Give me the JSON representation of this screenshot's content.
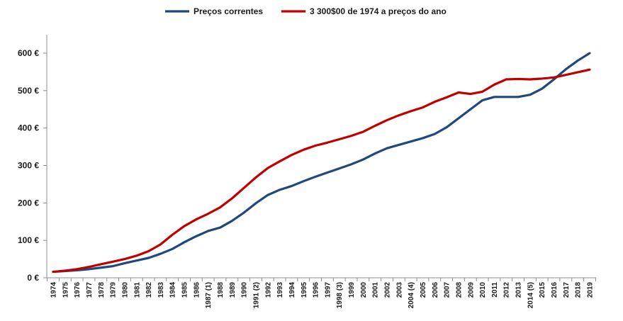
{
  "chart_data": {
    "type": "line",
    "title": "",
    "xlabel": "",
    "ylabel": "",
    "ylim": [
      0,
      600
    ],
    "y_ticks": [
      0,
      100,
      200,
      300,
      400,
      500,
      600
    ],
    "y_tick_labels": [
      "0 €",
      "100 €",
      "200 €",
      "300 €",
      "400 €",
      "500 €",
      "600 €"
    ],
    "grid": false,
    "legend_position": "top-center",
    "categories": [
      "1974",
      "1975",
      "1976",
      "1977",
      "1978",
      "1979",
      "1980",
      "1981",
      "1982",
      "1983",
      "1984",
      "1985",
      "1986",
      "1987 (1)",
      "1988",
      "1989",
      "1990",
      "1991 (2)",
      "1992",
      "1993",
      "1994",
      "1995",
      "1996",
      "1997",
      "1998 (3)",
      "1999",
      "2000",
      "2001",
      "2002",
      "2003",
      "2004 (4)",
      "2005",
      "2006",
      "2007",
      "2008",
      "2009",
      "2010",
      "2011",
      "2012",
      "2013",
      "2014 (5)",
      "2015",
      "2016",
      "2017",
      "2018",
      "2019"
    ],
    "series": [
      {
        "name": "Preços correntes",
        "color": "#1f497d",
        "values": [
          16,
          18,
          20,
          23,
          27,
          31,
          39,
          46,
          53,
          64,
          77,
          95,
          111,
          125,
          134,
          152,
          174,
          199,
          221,
          235,
          245,
          258,
          270,
          281,
          292,
          303,
          316,
          332,
          346,
          355,
          364,
          373,
          384,
          402,
          426,
          450,
          474,
          483,
          483,
          483,
          489,
          505,
          530,
          557,
          580,
          600
        ]
      },
      {
        "name": "3 300$00 de 1974 a preços do ano",
        "color": "#c00000",
        "values": [
          16,
          19,
          23,
          29,
          36,
          43,
          50,
          59,
          71,
          89,
          115,
          138,
          156,
          171,
          188,
          212,
          240,
          268,
          293,
          311,
          328,
          342,
          353,
          361,
          370,
          379,
          390,
          406,
          421,
          434,
          445,
          455,
          470,
          482,
          495,
          491,
          497,
          516,
          530,
          531,
          530,
          532,
          535,
          542,
          549,
          556
        ]
      }
    ]
  }
}
